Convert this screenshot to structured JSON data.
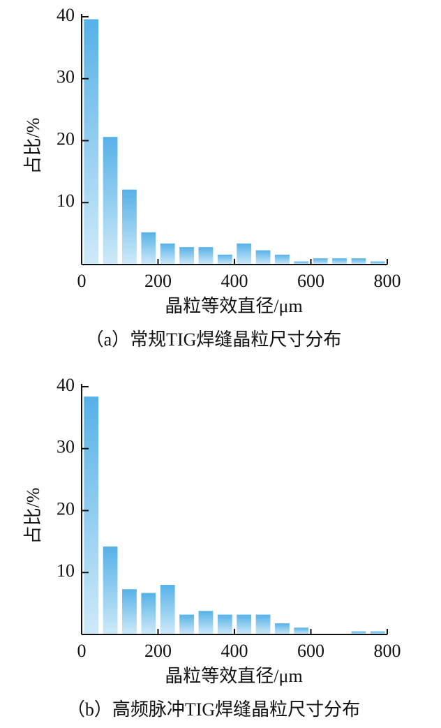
{
  "chart_data": [
    {
      "type": "histogram",
      "x_label": "晶粒等效直径/μm",
      "y_label": "占比/%",
      "caption": "（a）常规TIG焊缝晶粒尺寸分布",
      "bins": [
        0,
        50,
        100,
        150,
        200,
        250,
        300,
        350,
        400,
        450,
        500,
        550,
        600,
        650,
        700,
        750,
        800
      ],
      "values": [
        39.6,
        20.6,
        12.1,
        5.2,
        3.4,
        2.8,
        2.8,
        1.6,
        3.4,
        2.3,
        1.6,
        0.5,
        1.0,
        1.0,
        1.0,
        0.5
      ],
      "gradient": [
        "#56b1e7",
        "#cfeaf9"
      ],
      "xlim": [
        0,
        800
      ],
      "xticks": [
        0,
        200,
        400,
        600,
        800
      ],
      "ylim": [
        0,
        40
      ],
      "yticks": [
        10,
        20,
        30,
        40
      ]
    },
    {
      "type": "histogram",
      "x_label": "晶粒等效直径/μm",
      "y_label": "占比/%",
      "caption": "（b）高频脉冲TIG焊缝晶粒尺寸分布",
      "bins": [
        0,
        50,
        100,
        150,
        200,
        250,
        300,
        350,
        400,
        450,
        500,
        550,
        600,
        650,
        700,
        750,
        800
      ],
      "values": [
        38.4,
        14.2,
        7.3,
        6.7,
        8.0,
        3.2,
        3.8,
        3.2,
        3.2,
        3.2,
        1.8,
        1.1,
        0,
        0,
        0.5,
        0.5
      ],
      "gradient": [
        "#56b1e7",
        "#cfeaf9"
      ],
      "xlim": [
        0,
        800
      ],
      "xticks": [
        0,
        200,
        400,
        600,
        800
      ],
      "ylim": [
        0,
        40
      ],
      "yticks": [
        10,
        20,
        30,
        40
      ]
    }
  ]
}
